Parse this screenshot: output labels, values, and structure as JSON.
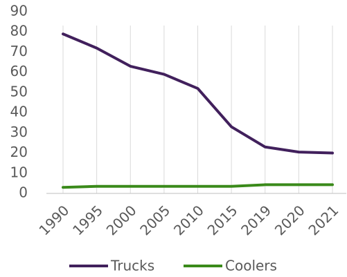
{
  "chart_data": {
    "type": "line",
    "categories": [
      "1990",
      "1995",
      "2000",
      "2005",
      "2010",
      "2015",
      "2019",
      "2020",
      "2021"
    ],
    "series": [
      {
        "name": "Trucks",
        "color": "#41205c",
        "values": [
          79,
          72,
          63,
          59,
          52,
          33,
          23,
          20.5,
          20
        ]
      },
      {
        "name": "Coolers",
        "color": "#3a8a1a",
        "values": [
          3,
          3.5,
          3.5,
          3.5,
          3.5,
          3.5,
          4.3,
          4.3,
          4.3
        ]
      }
    ],
    "ylim": [
      0,
      90
    ],
    "yticks": [
      0,
      10,
      20,
      30,
      40,
      50,
      60,
      70,
      80,
      90
    ],
    "grid": true,
    "legend": "bottom"
  }
}
